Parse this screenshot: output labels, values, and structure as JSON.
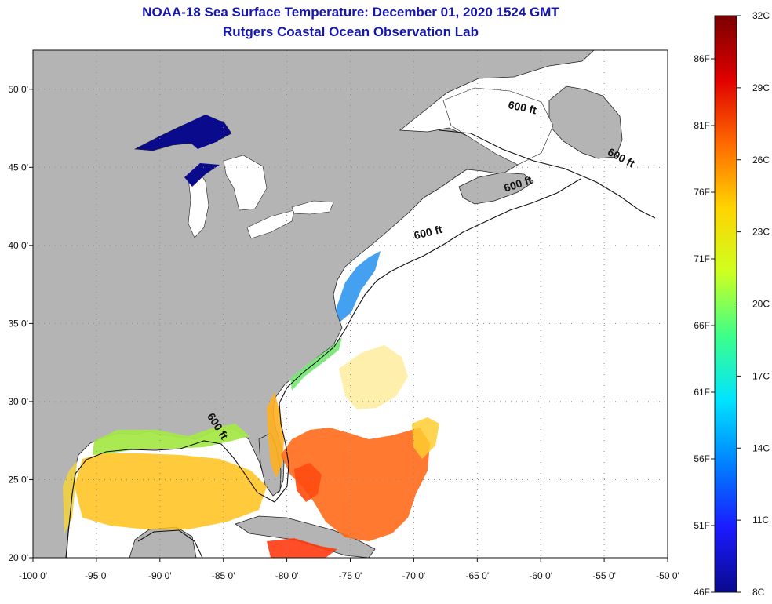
{
  "title": {
    "line1": "NOAA-18 Sea Surface Temperature:  December 01, 2020 1524 GMT",
    "line2": "Rutgers Coastal Ocean Observation Lab"
  },
  "map": {
    "lon_range": [
      -100,
      -50
    ],
    "lat_range": [
      20,
      52.5
    ],
    "lat_ticks": [
      {
        "value": 50,
        "label": "50 0'"
      },
      {
        "value": 45,
        "label": "45 0'"
      },
      {
        "value": 40,
        "label": "40 0'"
      },
      {
        "value": 35,
        "label": "35 0'"
      },
      {
        "value": 30,
        "label": "30 0'"
      },
      {
        "value": 25,
        "label": "25 0'"
      },
      {
        "value": 20,
        "label": "20 0'"
      }
    ],
    "lon_ticks": [
      {
        "value": -100,
        "label": "-100 0'"
      },
      {
        "value": -95,
        "label": "-95 0'"
      },
      {
        "value": -90,
        "label": "-90 0'"
      },
      {
        "value": -85,
        "label": "-85 0'"
      },
      {
        "value": -80,
        "label": "-80 0'"
      },
      {
        "value": -75,
        "label": "-75 0'"
      },
      {
        "value": -70,
        "label": "-70 0'"
      },
      {
        "value": -65,
        "label": "-65 0'"
      },
      {
        "value": -60,
        "label": "-60 0'"
      },
      {
        "value": -55,
        "label": "-55 0'"
      },
      {
        "value": -50,
        "label": "-50 0'"
      }
    ],
    "contour_label": "600 ft",
    "contour_labels": [
      {
        "lon": -61.5,
        "lat": 48.6,
        "rotate": 12
      },
      {
        "lon": -53.8,
        "lat": 45.4,
        "rotate": 28
      },
      {
        "lon": -61.7,
        "lat": 43.7,
        "rotate": -18
      },
      {
        "lon": -68.8,
        "lat": 40.6,
        "rotate": -14
      },
      {
        "lon": -85.7,
        "lat": 28.3,
        "rotate": 58
      }
    ],
    "colors": {
      "land": "#b4b4b4",
      "ocean": "#ffffff",
      "grid": "#888888"
    }
  },
  "colorbar": {
    "celsius": [
      "32C",
      "29C",
      "26C",
      "23C",
      "20C",
      "17C",
      "14C",
      "11C",
      "8C"
    ],
    "fahrenheit": [
      "86F",
      "81F",
      "76F",
      "71F",
      "66F",
      "61F",
      "56F",
      "51F",
      "46F"
    ],
    "gradient": [
      "#7a0000",
      "#e00000",
      "#ff6a00",
      "#ffd400",
      "#cfff20",
      "#3cff8a",
      "#00e4ff",
      "#0080ff",
      "#1a1aff",
      "#0a0a8c"
    ]
  }
}
